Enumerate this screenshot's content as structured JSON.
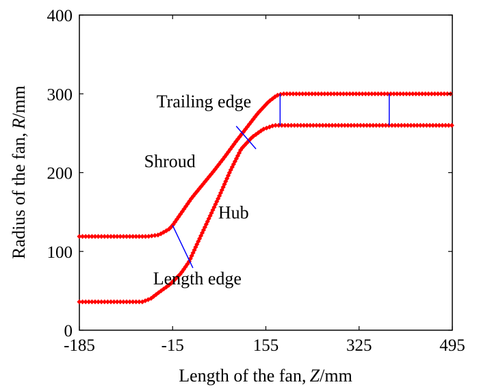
{
  "chart_data": {
    "type": "scatter",
    "xlabel": {
      "prefix": "Length of the fan, ",
      "var": "Z",
      "unit": "/mm"
    },
    "ylabel": {
      "prefix": "Radius of the fan, ",
      "var": "R",
      "unit": "/mm"
    },
    "xlim": [
      -185,
      495
    ],
    "ylim": [
      0,
      400
    ],
    "xticks": [
      -185,
      -15,
      155,
      325,
      495
    ],
    "yticks": [
      0,
      100,
      200,
      300,
      400
    ],
    "grid": false,
    "series": [
      {
        "color": "#ff0000",
        "marker": "diamond",
        "points": [
          [
            -185,
            119
          ],
          [
            -130,
            119
          ],
          [
            -90,
            119
          ],
          [
            -60,
            119
          ],
          [
            -40,
            121
          ],
          [
            -22,
            128
          ],
          [
            -15,
            133
          ],
          [
            0,
            148
          ],
          [
            20,
            168
          ],
          [
            40,
            185
          ],
          [
            60,
            202
          ],
          [
            80,
            220
          ],
          [
            100,
            239
          ],
          [
            120,
            257
          ],
          [
            140,
            275
          ],
          [
            160,
            290
          ],
          [
            175,
            298
          ],
          [
            185,
            300
          ],
          [
            260,
            300
          ],
          [
            340,
            300
          ],
          [
            420,
            300
          ],
          [
            495,
            300
          ]
        ]
      },
      {
        "color": "#ff0000",
        "marker": "diamond",
        "points": [
          [
            -185,
            36
          ],
          [
            -130,
            36
          ],
          [
            -90,
            36
          ],
          [
            -70,
            36
          ],
          [
            -55,
            40
          ],
          [
            -40,
            48
          ],
          [
            -20,
            58
          ],
          [
            0,
            72
          ],
          [
            15,
            87
          ],
          [
            30,
            110
          ],
          [
            50,
            140
          ],
          [
            70,
            170
          ],
          [
            90,
            202
          ],
          [
            110,
            230
          ],
          [
            130,
            245
          ],
          [
            150,
            255
          ],
          [
            170,
            260
          ],
          [
            200,
            260
          ],
          [
            280,
            260
          ],
          [
            360,
            260
          ],
          [
            440,
            260
          ],
          [
            495,
            260
          ]
        ]
      }
    ],
    "connectors": [
      {
        "color": "#0000ff",
        "from": [
          -15,
          133
        ],
        "to": [
          22,
          79
        ]
      },
      {
        "color": "#0000ff",
        "from": [
          101,
          259
        ],
        "to": [
          137,
          230
        ]
      },
      {
        "color": "#0000ff",
        "from": [
          181,
          300
        ],
        "to": [
          181,
          260
        ]
      },
      {
        "color": "#0000ff",
        "from": [
          380,
          300
        ],
        "to": [
          380,
          260
        ]
      }
    ],
    "annotations": [
      {
        "text": "Trailing edge",
        "x": 42,
        "y": 283
      },
      {
        "text": "Shroud",
        "x": -20,
        "y": 207
      },
      {
        "text": "Hub",
        "x": 96,
        "y": 142
      },
      {
        "text": "Length edge",
        "x": 30,
        "y": 58
      }
    ]
  }
}
